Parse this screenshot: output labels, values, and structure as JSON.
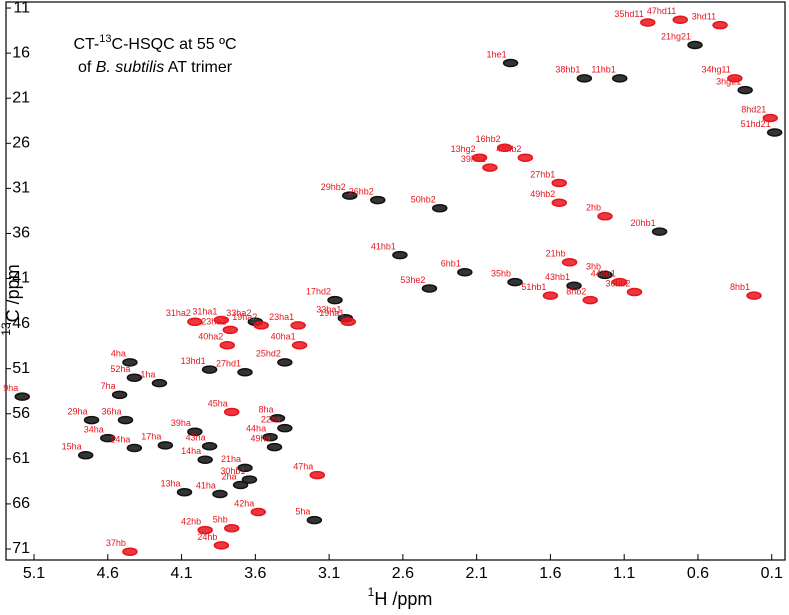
{
  "chart_data": {
    "type": "scatter",
    "title": [
      "CT-",
      "13",
      "C-HSQC at 55 ºC"
    ],
    "subtitle": [
      "of ",
      "B. subtilis",
      " AT trimer"
    ],
    "xlabel": [
      "1",
      "H /ppm"
    ],
    "ylabel": [
      "13",
      "C /ppm"
    ],
    "xlim": [
      5.29,
      0.01
    ],
    "ylim": [
      10.33,
      72.22
    ],
    "xticks": [
      5.1,
      4.6,
      4.1,
      3.6,
      3.1,
      2.6,
      2.1,
      1.6,
      1.1,
      0.6,
      0.1
    ],
    "yticks": [
      11,
      16,
      21,
      26,
      31,
      36,
      41,
      46,
      51,
      56,
      61,
      66,
      71
    ],
    "label_color": "#e8141c",
    "series": [
      {
        "color": "#111111",
        "labels": [
          "1he1",
          "38hb1",
          "11hb1",
          "21hg21",
          "3hg21",
          "51hd21",
          "29hb2",
          "26hb2",
          "50hb2",
          "41hb1",
          "53he2",
          "17hd2",
          "33ha1",
          "6hb1",
          "35hb",
          "3hb",
          "43hb1",
          "20hb1",
          "33ha2",
          "25hd2",
          "27hd1",
          "4ha",
          "9ha",
          "1ha",
          "29ha",
          "34ha",
          "15ha",
          "24ha",
          "17ha",
          "39ha",
          "8ha",
          "22ha",
          "44ha",
          "49ha",
          "21ha",
          "30hb1",
          "2ha",
          "13ha",
          "5ha",
          "13hd1",
          "52ha",
          "7ha",
          "36ha",
          "14ha",
          "41ha",
          "43ha"
        ],
        "x": [
          1.87,
          1.37,
          1.13,
          0.62,
          0.28,
          0.08,
          2.96,
          2.77,
          2.35,
          2.62,
          2.42,
          3.06,
          2.99,
          2.18,
          1.84,
          1.23,
          1.44,
          0.86,
          3.6,
          3.4,
          3.67,
          4.45,
          5.18,
          4.25,
          4.71,
          4.6,
          4.75,
          4.42,
          4.21,
          4.01,
          3.45,
          3.4,
          3.5,
          3.47,
          3.67,
          3.64,
          3.7,
          4.08,
          3.2,
          3.91,
          4.42,
          4.52,
          4.48,
          3.94,
          3.84,
          3.91
        ],
        "y": [
          17.1,
          18.8,
          18.8,
          15.1,
          20.1,
          24.8,
          31.8,
          32.3,
          33.2,
          38.4,
          42.1,
          43.4,
          45.4,
          40.3,
          41.4,
          40.6,
          41.8,
          35.8,
          45.8,
          50.3,
          51.4,
          50.3,
          54.1,
          52.6,
          56.7,
          58.7,
          60.6,
          59.8,
          59.5,
          58.0,
          56.5,
          57.6,
          58.6,
          59.7,
          62.0,
          63.3,
          63.9,
          64.7,
          67.8,
          51.1,
          52.0,
          53.9,
          56.7,
          61.1,
          64.9,
          59.6
        ]
      },
      {
        "color": "#e8141c",
        "labels": [
          "35hd11",
          "47hd11",
          "3hd11",
          "34hg11",
          "8hd21",
          "13hg2",
          "48hb2",
          "39hb2",
          "16hb2",
          "49hb2",
          "2hb",
          "21hb",
          "44hb1",
          "51hb1",
          "8hb2",
          "36hb2",
          "8hb1",
          "31ha2",
          "31ha1",
          "23ha2",
          "19ha2",
          "23ha1",
          "40ha2",
          "40ha1",
          "19ha1",
          "47ha",
          "42ha",
          "42hb",
          "5hb",
          "24hb",
          "37hb",
          "45ha",
          "27hb1"
        ],
        "x": [
          0.94,
          0.72,
          0.45,
          0.35,
          0.11,
          2.08,
          1.77,
          2.01,
          1.91,
          1.54,
          1.23,
          1.47,
          1.13,
          1.6,
          1.33,
          1.03,
          0.22,
          4.01,
          3.83,
          3.77,
          3.56,
          3.31,
          3.79,
          3.3,
          2.97,
          3.18,
          3.58,
          3.94,
          3.76,
          3.83,
          4.45,
          3.76,
          1.54
        ],
        "y": [
          12.6,
          12.3,
          12.9,
          18.8,
          23.2,
          27.6,
          27.6,
          28.7,
          26.5,
          32.6,
          34.1,
          39.2,
          41.4,
          42.9,
          43.4,
          42.5,
          42.9,
          45.8,
          45.6,
          46.7,
          46.2,
          46.2,
          48.4,
          48.4,
          45.8,
          62.8,
          66.9,
          68.9,
          68.7,
          70.6,
          71.3,
          55.8,
          30.4
        ]
      }
    ]
  }
}
